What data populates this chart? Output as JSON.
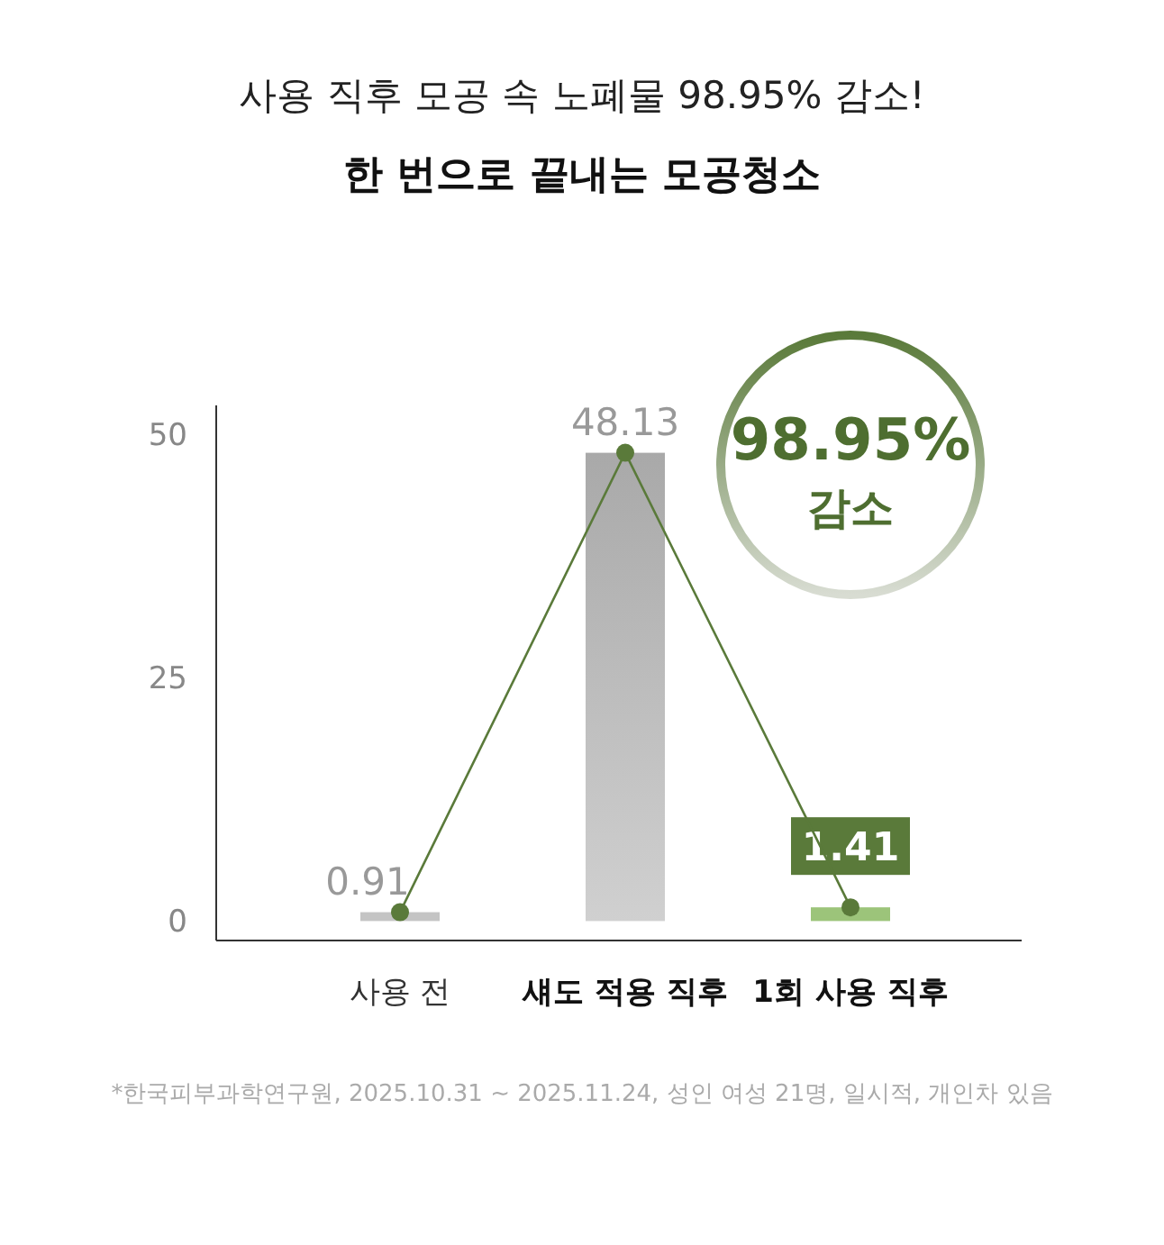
{
  "chart_data": {
    "type": "bar",
    "title": "사용 직후 모공 속 노폐물 98.95% 감소!",
    "subtitle": "한 번으로 끝내는 모공청소",
    "categories": [
      "사용 전",
      "섀도 적용 직후",
      "1회 사용 직후"
    ],
    "series": [
      {
        "colors": [
          "#c4c4c4",
          "#b4b4b4",
          "#9cc47a"
        ],
        "values": [
          0.91,
          48.13,
          1.41
        ],
        "value_labels": [
          "0.91",
          "48.13",
          "1.41"
        ]
      },
      {
        "type": "line",
        "color": "#5a7a3a",
        "marker": "circle",
        "values": [
          0.91,
          48.13,
          1.41
        ]
      }
    ],
    "ylim": [
      -2,
      53
    ],
    "yticks": [
      0,
      25,
      50
    ],
    "grid": false,
    "annotations": [
      "98.95%",
      "감소",
      "*한국피부과학연구원, 2025.10.31 ~ 2025.11.24, 성인 여성 21명, 일시적, 개인차 있음"
    ]
  }
}
